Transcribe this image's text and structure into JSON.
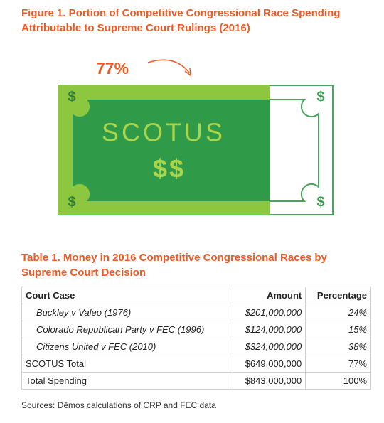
{
  "figure": {
    "type": "bill",
    "title": "Figure 1. Portion of Competitive Congressional Race Spending Attributable to Supreme Court Rulings (2016)",
    "value": 77,
    "value_label": "77%",
    "ylim": [
      0,
      100
    ],
    "center_text": "SCOTUS",
    "sub_text": "$$",
    "corner_symbol": "$",
    "fill_color": "#8dc63f",
    "inner_color": "#2f9b48",
    "text_color": "#a9d44b"
  },
  "table": {
    "title": "Table 1. Money in 2016 Competitive Congressional Races by Supreme Court Decision",
    "columns": [
      "Court Case",
      "Amount",
      "Percentage"
    ],
    "case_rows": [
      [
        "Buckley v Valeo (1976)",
        "$201,000,000",
        "24%"
      ],
      [
        "Colorado Republican Party v FEC (1996)",
        "$124,000,000",
        "15%"
      ],
      [
        "Citizens United v FEC (2010)",
        "$324,000,000",
        "38%"
      ]
    ],
    "total_rows": [
      [
        "SCOTUS Total",
        "$649,000,000",
        "77%"
      ],
      [
        "Total Spending",
        "$843,000,000",
        "100%"
      ]
    ],
    "source": "Sources: Dēmos calculations of CRP and FEC data"
  }
}
